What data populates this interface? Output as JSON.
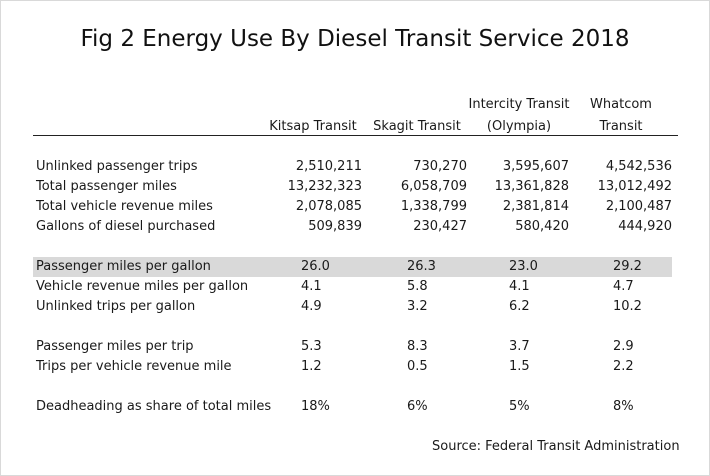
{
  "title": "Fig 2 Energy Use By Diesel Transit Service 2018",
  "columns": [
    {
      "line1": "",
      "line2": "Kitsap Transit"
    },
    {
      "line1": "",
      "line2": "Skagit Transit"
    },
    {
      "line1": "Intercity Transit",
      "line2": "(Olympia)"
    },
    {
      "line1": "Whatcom",
      "line2": "Transit"
    }
  ],
  "chart_data": {
    "type": "table",
    "title": "Fig 2 Energy Use By Diesel Transit Service 2018",
    "columns": [
      "Kitsap Transit",
      "Skagit Transit",
      "Intercity Transit (Olympia)",
      "Whatcom Transit"
    ],
    "groups": [
      {
        "style": "number",
        "rows": [
          {
            "label": "Unlinked passenger trips",
            "values": [
              "2,510,211",
              "730,270",
              "3,595,607",
              "4,542,536"
            ]
          },
          {
            "label": "Total passenger miles",
            "values": [
              "13,232,323",
              "6,058,709",
              "13,361,828",
              "13,012,492"
            ]
          },
          {
            "label": "Total vehicle revenue miles",
            "values": [
              "2,078,085",
              "1,338,799",
              "2,381,814",
              "2,100,487"
            ]
          },
          {
            "label": "Gallons of diesel purchased",
            "values": [
              "509,839",
              "230,427",
              "580,420",
              "444,920"
            ]
          }
        ]
      },
      {
        "style": "ratio",
        "rows": [
          {
            "label": "Passenger miles per gallon",
            "values": [
              "26.0",
              "26.3",
              "23.0",
              "29.2"
            ],
            "highlight": true
          },
          {
            "label": "Vehicle revenue miles per gallon",
            "values": [
              "4.1",
              "5.8",
              "4.1",
              "4.7"
            ]
          },
          {
            "label": "Unlinked trips per gallon",
            "values": [
              "4.9",
              "3.2",
              "6.2",
              "10.2"
            ]
          }
        ]
      },
      {
        "style": "ratio",
        "rows": [
          {
            "label": "Passenger miles per trip",
            "values": [
              "5.3",
              "8.3",
              "3.7",
              "2.9"
            ]
          },
          {
            "label": "Trips per vehicle revenue mile",
            "values": [
              "1.2",
              "0.5",
              "1.5",
              "2.2"
            ]
          }
        ]
      },
      {
        "style": "ratio",
        "rows": [
          {
            "label": "Deadheading as share of total miles",
            "values": [
              "18%",
              "6%",
              "5%",
              "8%"
            ]
          }
        ]
      }
    ],
    "highlight_color": "#d9d9d9"
  },
  "source": "Source: Federal Transit Administration"
}
